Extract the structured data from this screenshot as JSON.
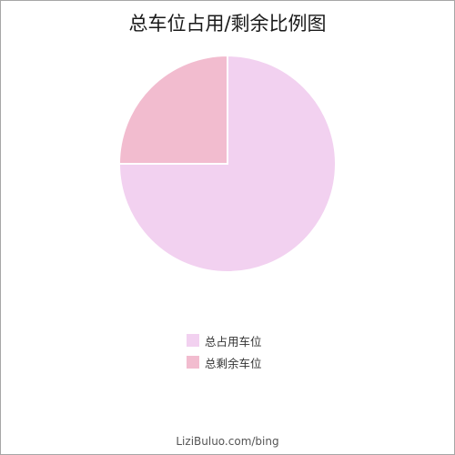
{
  "chart_data": {
    "type": "pie",
    "title": "总车位占用/剩余比例图",
    "slices": [
      {
        "label": "总占用车位",
        "value": 75,
        "color": "#f2d1f0"
      },
      {
        "label": "总剩余车位",
        "value": 25,
        "color": "#f2bccf"
      }
    ],
    "legend_position": "bottom"
  },
  "watermark": "LiziBuluo.com/bing"
}
